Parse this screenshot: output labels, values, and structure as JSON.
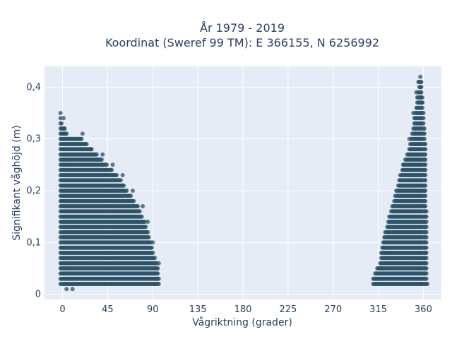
{
  "chart_data": {
    "type": "scatter",
    "title_line1": "År 1979 - 2019",
    "title_line2": "Koordinat (Sweref 99 TM): E 366155, N 6256992",
    "xlabel": "Vågriktning (grader)",
    "ylabel": "Signifikant våghöjd (m)",
    "xlim": [
      -18,
      378
    ],
    "ylim": [
      -0.01,
      0.44
    ],
    "x_ticks": [
      0,
      45,
      90,
      135,
      180,
      225,
      270,
      315,
      360
    ],
    "x_tick_labels": [
      "0",
      "45",
      "90",
      "135",
      "180",
      "225",
      "270",
      "315",
      "360"
    ],
    "y_ticks": [
      0,
      0.1,
      0.2,
      0.3,
      0.4
    ],
    "y_tick_labels": [
      "0",
      "0,1",
      "0,2",
      "0,3",
      "0,4"
    ],
    "grid": true,
    "point_color": "#2e5266",
    "plot_bg": "#e5ecf6",
    "series": [
      {
        "points_upper_envelope_left": [
          [
            -2,
            0.35
          ],
          [
            0,
            0.33
          ],
          [
            5,
            0.31
          ],
          [
            20,
            0.3
          ],
          [
            35,
            0.27
          ],
          [
            45,
            0.25
          ],
          [
            55,
            0.23
          ],
          [
            65,
            0.2
          ],
          [
            75,
            0.17
          ],
          [
            82,
            0.14
          ],
          [
            88,
            0.1
          ],
          [
            92,
            0.07
          ],
          [
            95,
            0.06
          ],
          [
            96,
            0.03
          ]
        ],
        "points_upper_envelope_right": [
          [
            310,
            0.03
          ],
          [
            316,
            0.06
          ],
          [
            322,
            0.12
          ],
          [
            330,
            0.18
          ],
          [
            338,
            0.24
          ],
          [
            345,
            0.28
          ],
          [
            350,
            0.33
          ],
          [
            353,
            0.37
          ],
          [
            355,
            0.4
          ],
          [
            356,
            0.42
          ],
          [
            358,
            0.42
          ],
          [
            360,
            0.36
          ],
          [
            362,
            0.3
          ],
          [
            364,
            0.02
          ]
        ],
        "lower_bound": 0.02,
        "sample_points": [
          [
            -2,
            0.35
          ],
          [
            1,
            0.34
          ],
          [
            2,
            0.32
          ],
          [
            20,
            0.31
          ],
          [
            28,
            0.28
          ],
          [
            40,
            0.27
          ],
          [
            50,
            0.25
          ],
          [
            60,
            0.23
          ],
          [
            70,
            0.2
          ],
          [
            80,
            0.17
          ],
          [
            85,
            0.14
          ],
          [
            90,
            0.1
          ],
          [
            93,
            0.06
          ],
          [
            96,
            0.06
          ],
          [
            94,
            0.03
          ],
          [
            10,
            0.01
          ],
          [
            4,
            0.01
          ],
          [
            315,
            0.03
          ],
          [
            320,
            0.03
          ],
          [
            318,
            0.05
          ],
          [
            322,
            0.09
          ],
          [
            326,
            0.12
          ],
          [
            330,
            0.15
          ],
          [
            340,
            0.25
          ],
          [
            346,
            0.3
          ],
          [
            350,
            0.35
          ],
          [
            353,
            0.39
          ],
          [
            355,
            0.41
          ],
          [
            357,
            0.42
          ],
          [
            359,
            0.37
          ]
        ]
      }
    ]
  }
}
